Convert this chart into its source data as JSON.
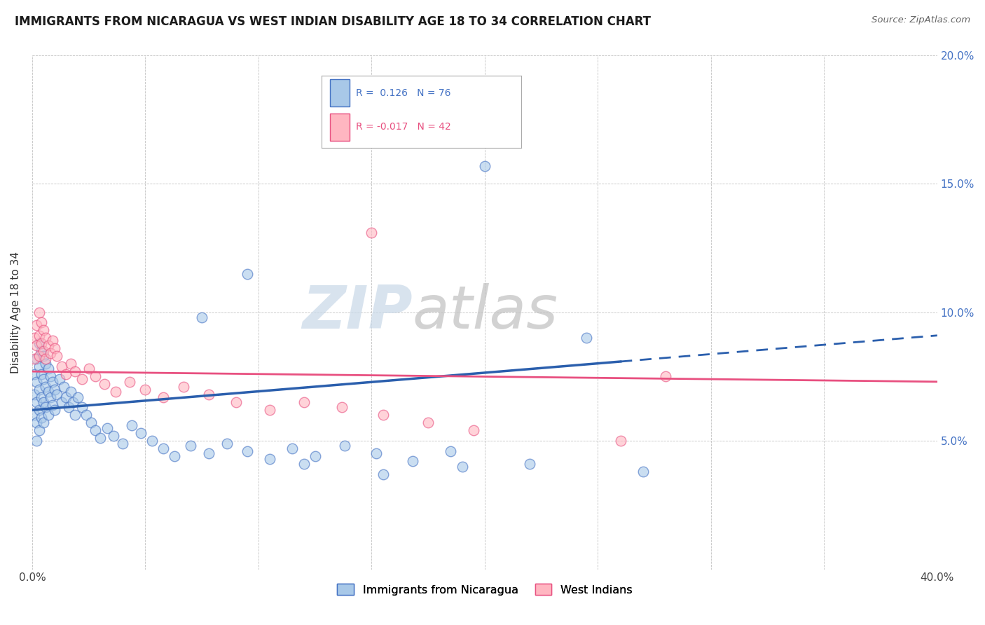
{
  "title": "IMMIGRANTS FROM NICARAGUA VS WEST INDIAN DISABILITY AGE 18 TO 34 CORRELATION CHART",
  "source": "Source: ZipAtlas.com",
  "ylabel": "Disability Age 18 to 34",
  "legend_label_blue": "Immigrants from Nicaragua",
  "legend_label_pink": "West Indians",
  "R_blue": 0.126,
  "N_blue": 76,
  "R_pink": -0.017,
  "N_pink": 42,
  "xlim": [
    0.0,
    0.4
  ],
  "ylim": [
    0.0,
    0.2
  ],
  "color_blue": "#a8c8e8",
  "color_pink": "#ffb6c1",
  "edge_blue": "#4472c4",
  "edge_pink": "#e85080",
  "trend_blue": "#2b5fad",
  "trend_pink": "#e85080",
  "background_color": "#ffffff",
  "watermark_zip": "ZIP",
  "watermark_atlas": "atlas",
  "blue_trend_y_start": 0.062,
  "blue_trend_y_end": 0.091,
  "blue_trend_solid_end_x": 0.26,
  "pink_trend_y_start": 0.077,
  "pink_trend_y_end": 0.073,
  "blue_x": [
    0.001,
    0.001,
    0.001,
    0.002,
    0.002,
    0.002,
    0.002,
    0.002,
    0.003,
    0.003,
    0.003,
    0.003,
    0.003,
    0.004,
    0.004,
    0.004,
    0.004,
    0.005,
    0.005,
    0.005,
    0.005,
    0.006,
    0.006,
    0.006,
    0.007,
    0.007,
    0.007,
    0.008,
    0.008,
    0.009,
    0.009,
    0.01,
    0.01,
    0.011,
    0.012,
    0.013,
    0.014,
    0.015,
    0.016,
    0.017,
    0.018,
    0.019,
    0.02,
    0.022,
    0.024,
    0.026,
    0.028,
    0.03,
    0.033,
    0.036,
    0.04,
    0.044,
    0.048,
    0.053,
    0.058,
    0.063,
    0.07,
    0.078,
    0.086,
    0.095,
    0.105,
    0.115,
    0.125,
    0.138,
    0.152,
    0.168,
    0.185,
    0.2,
    0.22,
    0.245,
    0.27,
    0.19,
    0.155,
    0.12,
    0.095,
    0.075
  ],
  "blue_y": [
    0.076,
    0.068,
    0.06,
    0.082,
    0.073,
    0.065,
    0.057,
    0.05,
    0.088,
    0.079,
    0.07,
    0.062,
    0.054,
    0.085,
    0.076,
    0.067,
    0.059,
    0.083,
    0.074,
    0.065,
    0.057,
    0.08,
    0.071,
    0.063,
    0.078,
    0.069,
    0.06,
    0.075,
    0.067,
    0.073,
    0.064,
    0.07,
    0.062,
    0.068,
    0.074,
    0.065,
    0.071,
    0.067,
    0.063,
    0.069,
    0.065,
    0.06,
    0.067,
    0.063,
    0.06,
    0.057,
    0.054,
    0.051,
    0.055,
    0.052,
    0.049,
    0.056,
    0.053,
    0.05,
    0.047,
    0.044,
    0.048,
    0.045,
    0.049,
    0.046,
    0.043,
    0.047,
    0.044,
    0.048,
    0.045,
    0.042,
    0.046,
    0.157,
    0.041,
    0.09,
    0.038,
    0.04,
    0.037,
    0.041,
    0.115,
    0.098
  ],
  "pink_x": [
    0.001,
    0.001,
    0.002,
    0.002,
    0.003,
    0.003,
    0.003,
    0.004,
    0.004,
    0.005,
    0.005,
    0.006,
    0.006,
    0.007,
    0.008,
    0.009,
    0.01,
    0.011,
    0.013,
    0.015,
    0.017,
    0.019,
    0.022,
    0.025,
    0.028,
    0.032,
    0.037,
    0.043,
    0.05,
    0.058,
    0.067,
    0.078,
    0.09,
    0.105,
    0.12,
    0.137,
    0.155,
    0.175,
    0.195,
    0.15,
    0.26,
    0.28
  ],
  "pink_y": [
    0.09,
    0.082,
    0.095,
    0.087,
    0.1,
    0.091,
    0.083,
    0.096,
    0.088,
    0.093,
    0.085,
    0.09,
    0.082,
    0.087,
    0.084,
    0.089,
    0.086,
    0.083,
    0.079,
    0.076,
    0.08,
    0.077,
    0.074,
    0.078,
    0.075,
    0.072,
    0.069,
    0.073,
    0.07,
    0.067,
    0.071,
    0.068,
    0.065,
    0.062,
    0.065,
    0.063,
    0.06,
    0.057,
    0.054,
    0.131,
    0.05,
    0.075
  ]
}
